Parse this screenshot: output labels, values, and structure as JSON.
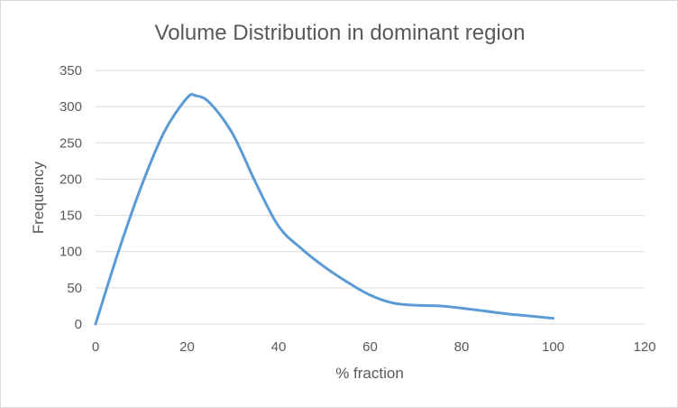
{
  "chart_data": {
    "type": "line",
    "title": "Volume Distribution in dominant region",
    "xlabel": "% fraction",
    "ylabel": "Frequency",
    "xlim": [
      0,
      120
    ],
    "ylim": [
      0,
      350
    ],
    "xticks": [
      0,
      20,
      40,
      60,
      80,
      100,
      120
    ],
    "yticks": [
      0,
      50,
      100,
      150,
      200,
      250,
      300,
      350
    ],
    "grid": "horizontal",
    "legend": "none",
    "line_color": "#5b9bd5",
    "series": [
      {
        "x": [
          0,
          5,
          10,
          15,
          20,
          22,
          25,
          30,
          35,
          40,
          45,
          50,
          55,
          60,
          65,
          70,
          75,
          80,
          85,
          90,
          95,
          100
        ],
        "values": [
          0,
          100,
          190,
          265,
          312,
          315,
          305,
          262,
          195,
          135,
          104,
          79,
          58,
          40,
          29,
          26,
          25,
          22,
          18,
          14,
          11,
          8
        ]
      }
    ]
  }
}
